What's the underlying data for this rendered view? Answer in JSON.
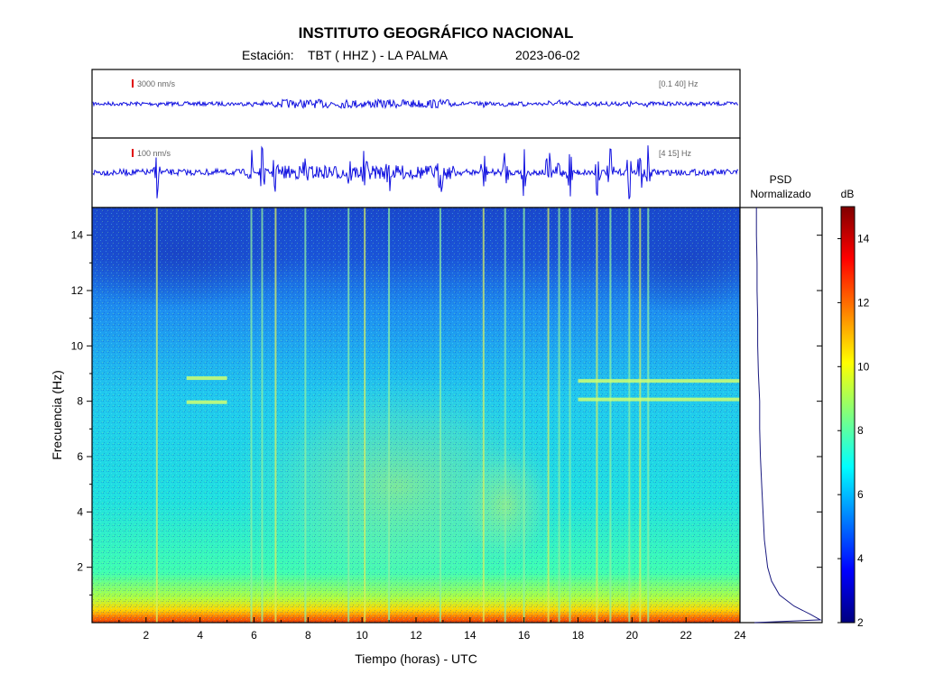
{
  "header": {
    "title": "INSTITUTO GEOGRÁFICO NACIONAL",
    "station_label": "Estación:",
    "station": "TBT ( HHZ ) - LA PALMA",
    "date": "2023-06-02"
  },
  "traces": [
    {
      "scale": "3000 nm/s",
      "band": "[0.1 40] Hz"
    },
    {
      "scale": "100 nm/s",
      "band": "[4 15] Hz"
    }
  ],
  "psd": {
    "title_line1": "PSD",
    "title_line2": "Normalizado"
  },
  "colors": {
    "trace": "#1010e0",
    "scale_marker": "#e00000",
    "psd_line": "#1a1a80"
  },
  "chart_data": {
    "type": "heatmap",
    "xlabel": "Tiempo (horas) - UTC",
    "ylabel": "Frecuencia  (Hz)",
    "xlim": [
      0,
      24
    ],
    "ylim": [
      0,
      15
    ],
    "xticks": [
      "2",
      "4",
      "6",
      "8",
      "10",
      "12",
      "14",
      "16",
      "18",
      "20",
      "22",
      "24"
    ],
    "yticks": [
      "2",
      "4",
      "6",
      "8",
      "10",
      "12",
      "14"
    ],
    "colorbar": {
      "label": "dB",
      "range": [
        2,
        15
      ],
      "ticks": [
        "2",
        "4",
        "6",
        "8",
        "10",
        "12",
        "14"
      ],
      "colormap": "jet"
    },
    "event_times_h": [
      2.4,
      5.9,
      6.3,
      6.8,
      7.9,
      9.5,
      10.1,
      11.0,
      12.9,
      14.5,
      15.3,
      16.0,
      16.9,
      17.3,
      17.7,
      18.7,
      19.2,
      19.9,
      20.3,
      20.6
    ],
    "tremor_bands": [
      {
        "t_start": 3.5,
        "t_end": 5.0,
        "f": [
          7.9,
          8.9
        ]
      },
      {
        "t_start": 18.0,
        "t_end": 24.0,
        "f": [
          8.0,
          8.8
        ]
      }
    ],
    "psd_profile": {
      "freq_hz": [
        0.0,
        0.1,
        0.3,
        0.6,
        1.0,
        1.5,
        2.0,
        3.0,
        4.0,
        5.0,
        6.0,
        7.0,
        8.0,
        9.0,
        10.0,
        11.0,
        12.0,
        13.0,
        14.0,
        15.0
      ],
      "normalized": [
        0.0,
        1.0,
        0.85,
        0.6,
        0.38,
        0.26,
        0.2,
        0.15,
        0.13,
        0.11,
        0.09,
        0.08,
        0.08,
        0.06,
        0.05,
        0.05,
        0.04,
        0.04,
        0.03,
        0.03
      ]
    }
  }
}
